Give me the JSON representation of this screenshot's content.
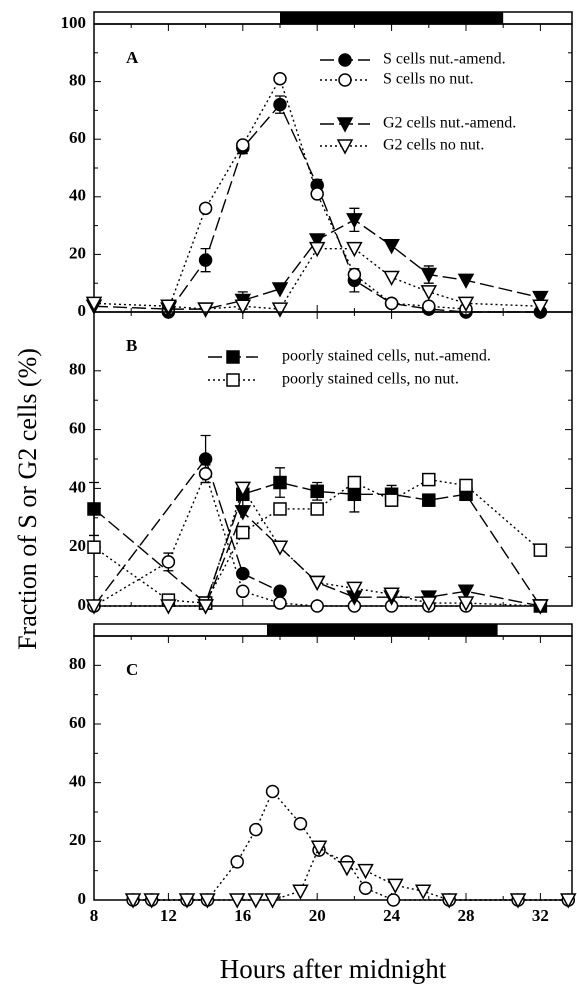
{
  "chart_data": [
    {
      "type": "line",
      "panel": "A",
      "xlim": [
        8,
        33.7
      ],
      "ylim": [
        0,
        100
      ],
      "yticks": [
        0,
        20,
        40,
        60,
        80,
        100
      ],
      "xticks": [
        8,
        12,
        16,
        20,
        24,
        28,
        32
      ],
      "show_xtick_labels": false,
      "dark_period": [
        18,
        30
      ],
      "series": [
        {
          "name": "S cells nut.-amend.",
          "color": "#000000",
          "marker": "circle",
          "filled": true,
          "dash": "dash",
          "x": [
            12,
            14,
            16,
            18,
            20,
            22,
            24,
            26,
            28,
            32
          ],
          "values": [
            0,
            18,
            57,
            72,
            44,
            11,
            3,
            1,
            0,
            0
          ],
          "errors": [
            null,
            4,
            2,
            3,
            2,
            4,
            null,
            null,
            null,
            null
          ]
        },
        {
          "name": "S cells no nut.",
          "color": "#000000",
          "marker": "circle",
          "filled": false,
          "dash": "dot",
          "x": [
            12,
            14,
            16,
            18,
            20,
            22,
            24,
            26,
            28
          ],
          "values": [
            1,
            36,
            58,
            81,
            41,
            13,
            3,
            2,
            1
          ]
        },
        {
          "name": "G2 cells nut.-amend.",
          "color": "#000000",
          "marker": "triangle",
          "filled": true,
          "dash": "dash",
          "x": [
            8,
            12,
            14,
            16,
            18,
            20,
            22,
            24,
            26,
            28,
            32
          ],
          "values": [
            2,
            1,
            1,
            4,
            8,
            25,
            32,
            23,
            13,
            11,
            5
          ],
          "errors": [
            null,
            null,
            null,
            3,
            null,
            2,
            4,
            null,
            3,
            null,
            null
          ]
        },
        {
          "name": "G2 cells no nut.",
          "color": "#000000",
          "marker": "triangle",
          "filled": false,
          "dash": "dot",
          "x": [
            8,
            12,
            14,
            16,
            18,
            20,
            22,
            24,
            26,
            28,
            32
          ],
          "values": [
            3,
            2,
            1,
            2,
            1,
            22,
            22,
            12,
            7,
            3,
            2
          ]
        }
      ]
    },
    {
      "type": "line",
      "panel": "B",
      "xlim": [
        8,
        33.7
      ],
      "ylim": [
        0,
        100
      ],
      "yticks": [
        0,
        20,
        40,
        60,
        80
      ],
      "xticks": [
        8,
        12,
        16,
        20,
        24,
        28,
        32
      ],
      "show_xtick_labels": false,
      "ylabel": "Fraction of S or G2 cells (%)",
      "series": [
        {
          "name": "poorly stained cells, nut.-amend.",
          "color": "#000000",
          "marker": "square",
          "filled": true,
          "dash": "dash",
          "x": [
            8,
            14,
            16,
            18,
            20,
            22,
            24,
            26,
            28,
            32
          ],
          "values": [
            33,
            1,
            38,
            42,
            39,
            38,
            38,
            36,
            38,
            0
          ],
          "errors": [
            9,
            null,
            4,
            5,
            3,
            6,
            3,
            2,
            null,
            null
          ]
        },
        {
          "name": "poorly stained cells, no nut.",
          "color": "#000000",
          "marker": "square",
          "filled": false,
          "dash": "dot",
          "x": [
            8,
            12,
            14,
            16,
            18,
            20,
            22,
            24,
            26,
            28,
            32
          ],
          "values": [
            20,
            2,
            1,
            25,
            33,
            33,
            42,
            36,
            43,
            41,
            19
          ]
        },
        {
          "color": "#000000",
          "marker": "circle",
          "filled": true,
          "dash": "dash",
          "x": [
            8,
            14,
            16,
            18
          ],
          "values": [
            0,
            50,
            11,
            5
          ],
          "errors": [
            null,
            8,
            null,
            null
          ]
        },
        {
          "color": "#000000",
          "marker": "circle",
          "filled": false,
          "dash": "dot",
          "x": [
            8,
            12,
            14,
            16,
            18,
            20,
            22,
            24,
            26,
            28
          ],
          "values": [
            0,
            15,
            45,
            5,
            1,
            0,
            0,
            0,
            0,
            0
          ],
          "errors": [
            null,
            3,
            3,
            null,
            null,
            null,
            null,
            null,
            null,
            null
          ]
        },
        {
          "color": "#000000",
          "marker": "triangle",
          "filled": true,
          "dash": "dash",
          "x": [
            14,
            16,
            20,
            22,
            24,
            26,
            28,
            32
          ],
          "values": [
            0,
            32,
            8,
            3,
            3,
            3,
            5,
            0
          ]
        },
        {
          "color": "#000000",
          "marker": "triangle",
          "filled": false,
          "dash": "dot",
          "x": [
            8,
            12,
            14,
            16,
            18,
            20,
            22,
            24,
            26,
            28,
            32
          ],
          "values": [
            0,
            0,
            0,
            40,
            20,
            8,
            6,
            4,
            1,
            1,
            0
          ]
        }
      ]
    },
    {
      "type": "line",
      "panel": "C",
      "xlim": [
        8,
        33.7
      ],
      "ylim": [
        0,
        90
      ],
      "yticks": [
        0,
        20,
        40,
        60,
        80
      ],
      "xticks": [
        8,
        12,
        16,
        20,
        24,
        28,
        32
      ],
      "show_xtick_labels": true,
      "dark_period": [
        17.3,
        29.7
      ],
      "xlabel": "Hours after midnight",
      "series": [
        {
          "color": "#000000",
          "marker": "circle",
          "filled": false,
          "dash": "dot",
          "x": [
            10.1,
            11.1,
            13,
            14.1,
            15.7,
            16.7,
            17.6,
            19.1,
            20.1,
            21.6,
            22.6,
            24.1,
            27.1,
            30.8,
            33.5
          ],
          "values": [
            0,
            0,
            0,
            0,
            13,
            24,
            37,
            26,
            17,
            13,
            4,
            0,
            0,
            0,
            0
          ]
        },
        {
          "color": "#000000",
          "marker": "triangle",
          "filled": false,
          "dash": "dot",
          "x": [
            10.1,
            11.1,
            13,
            14.1,
            15.7,
            16.7,
            17.6,
            19.1,
            20.1,
            21.6,
            22.6,
            24.2,
            25.7,
            27.1,
            30.8,
            33.5
          ],
          "values": [
            0,
            0,
            0,
            0,
            0,
            0,
            0,
            3,
            18,
            11,
            10,
            5,
            3,
            0,
            0,
            0
          ]
        }
      ]
    }
  ]
}
